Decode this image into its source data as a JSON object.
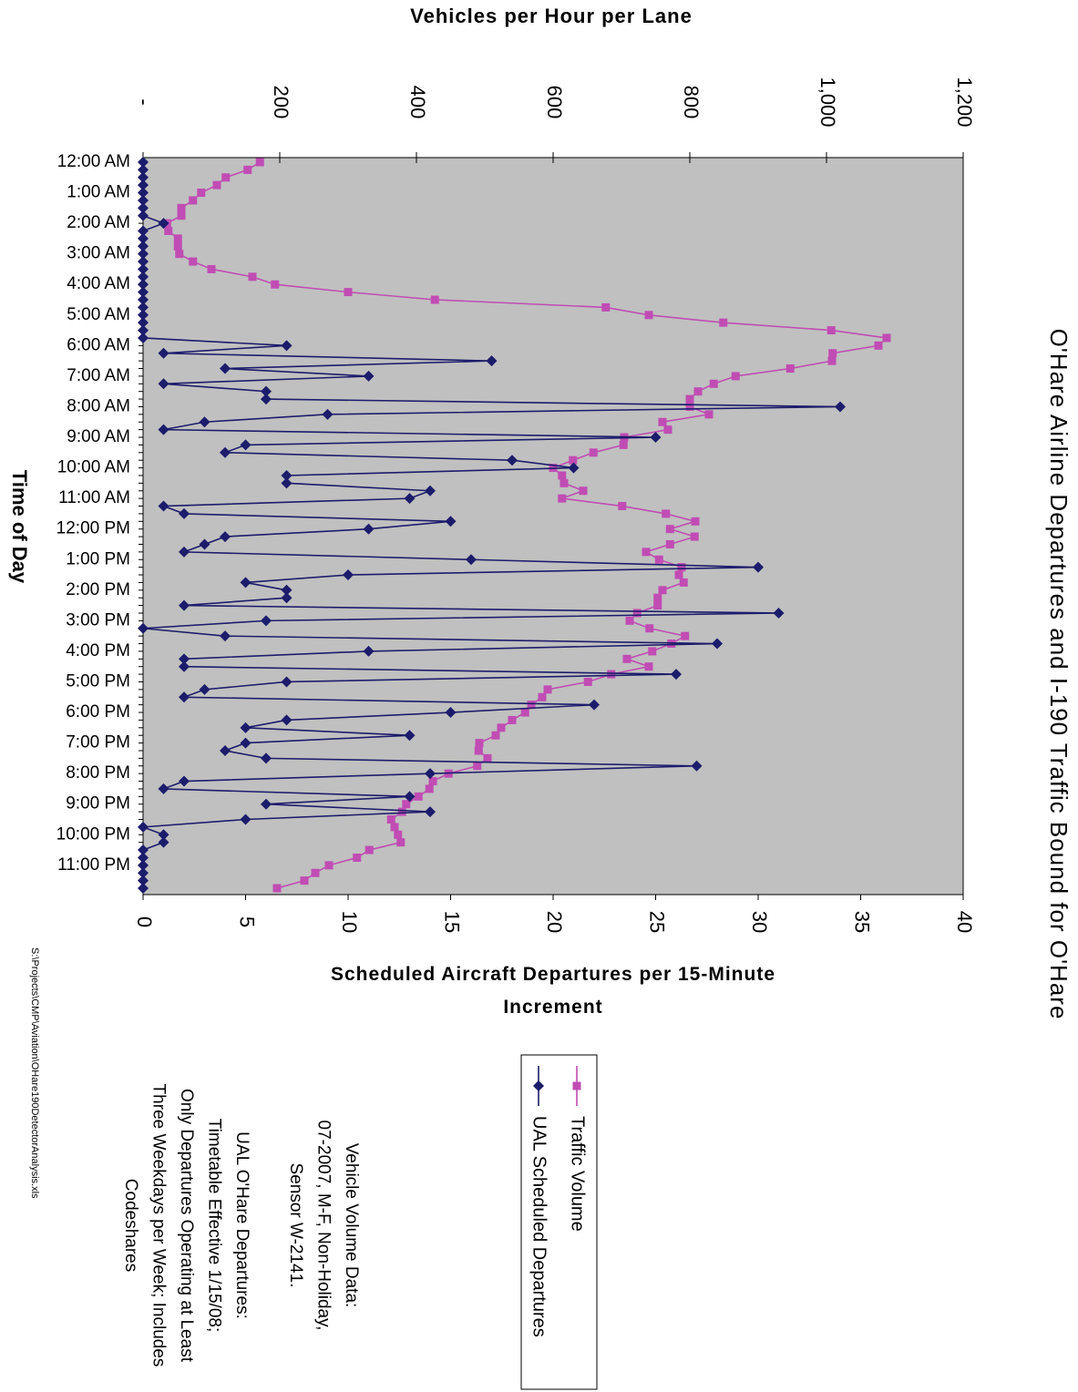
{
  "chart_data": {
    "type": "line",
    "title": "O'Hare Airline Departures and I-190 Traffic Bound for O'Hare",
    "xlabel": "Time of Day",
    "ylabel": "Scheduled Aircraft Departures per 15-Minute Increment",
    "y2label": "Vehicles per Hour per Lane",
    "categories": [
      "12:00 AM",
      null,
      null,
      null,
      "1:00 AM",
      null,
      null,
      null,
      "2:00 AM",
      null,
      null,
      null,
      "3:00 AM",
      null,
      null,
      null,
      "4:00 AM",
      null,
      null,
      null,
      "5:00 AM",
      null,
      null,
      null,
      "6:00 AM",
      null,
      null,
      null,
      "7:00 AM",
      null,
      null,
      null,
      "8:00 AM",
      null,
      null,
      null,
      "9:00 AM",
      null,
      null,
      null,
      "10:00 AM",
      null,
      null,
      null,
      "11:00 AM",
      null,
      null,
      null,
      "12:00 PM",
      null,
      null,
      null,
      "1:00 PM",
      null,
      null,
      null,
      "2:00 PM",
      null,
      null,
      null,
      "3:00 PM",
      null,
      null,
      null,
      "4:00 PM",
      null,
      null,
      null,
      "5:00 PM",
      null,
      null,
      null,
      "6:00 PM",
      null,
      null,
      null,
      "7:00 PM",
      null,
      null,
      null,
      "8:00 PM",
      null,
      null,
      null,
      "9:00 PM",
      null,
      null,
      null,
      "10:00 PM",
      null,
      null,
      null,
      "11:00 PM",
      null,
      null,
      null
    ],
    "ylim": [
      0,
      40
    ],
    "yticks": [
      0,
      5,
      10,
      15,
      20,
      25,
      30,
      35,
      40
    ],
    "y2lim": [
      0,
      1200
    ],
    "y2ticks": [
      {
        "value": 0,
        "label": "-"
      },
      200,
      400,
      600,
      800,
      {
        "value": 1000,
        "label": "1,000"
      },
      {
        "value": 1200,
        "label": "1,200"
      }
    ],
    "grid": false,
    "plot_background": "#c0c0c0",
    "series": [
      {
        "name": "Traffic Volume",
        "color": "#c04cb4",
        "marker": "square",
        "axis": "y2",
        "values": [
          171,
          153,
          121,
          108,
          85,
          73,
          56,
          56,
          35,
          37,
          51,
          51,
          53,
          73,
          100,
          160,
          193,
          300,
          427,
          677,
          740,
          849,
          1007,
          1088,
          1076,
          1009,
          1008,
          947,
          867,
          835,
          812,
          800,
          800,
          828,
          760,
          768,
          704,
          703,
          659,
          629,
          600,
          613,
          616,
          644,
          613,
          701,
          765,
          808,
          771,
          807,
          771,
          736,
          755,
          788,
          784,
          791,
          760,
          753,
          753,
          723,
          712,
          741,
          793,
          773,
          745,
          708,
          740,
          685,
          651,
          592,
          584,
          568,
          559,
          540,
          524,
          516,
          492,
          491,
          504,
          489,
          447,
          424,
          419,
          403,
          385,
          379,
          363,
          368,
          373,
          377,
          331,
          313,
          272,
          252,
          236,
          196
        ]
      },
      {
        "name": "UAL Scheduled Departures",
        "color": "#1c1c6c",
        "marker": "diamond",
        "axis": "y",
        "values": [
          0,
          0,
          0,
          0,
          0,
          0,
          0,
          0,
          1,
          0,
          0,
          0,
          0,
          0,
          0,
          0,
          0,
          0,
          0,
          0,
          0,
          0,
          0,
          0,
          7,
          1,
          17,
          4,
          11,
          1,
          6,
          6,
          34,
          9,
          3,
          1,
          25,
          5,
          4,
          18,
          21,
          7,
          7,
          14,
          13,
          1,
          2,
          15,
          11,
          4,
          3,
          2,
          16,
          30,
          10,
          5,
          7,
          7,
          2,
          31,
          6,
          0,
          4,
          28,
          11,
          2,
          2,
          26,
          7,
          3,
          2,
          22,
          15,
          7,
          5,
          13,
          5,
          4,
          6,
          27,
          14,
          2,
          1,
          13,
          6,
          14,
          5,
          0,
          1,
          1,
          0,
          0,
          0,
          0,
          0,
          0
        ]
      }
    ]
  },
  "notes": [
    [
      "Vehicle Volume Data:",
      "07-2007, M-F, Non-Holiday,",
      "Sensor W-2141."
    ],
    [
      "UAL O'Hare Departures:",
      "Timetable Effective 1/15/08;",
      "Only Departures Operating at Least",
      "Three Weekdays per Week; Includes",
      "Codeshares"
    ]
  ],
  "footer": "S:\\Projects\\CMP\\Aviation\\OHare190DetectorAnalysis.xls"
}
